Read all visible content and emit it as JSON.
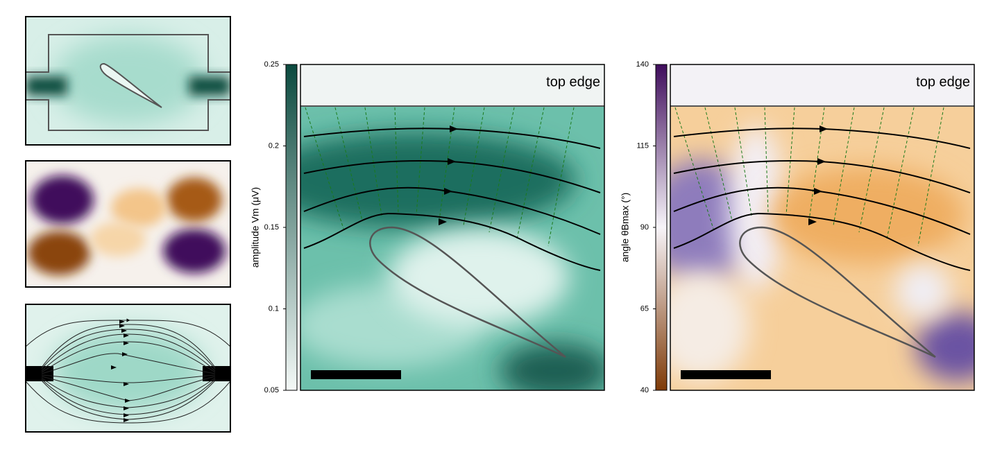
{
  "chart_data": [
    {
      "type": "heatmap",
      "ylabel": "amplitude Vm (μV)",
      "annotation": "top edge",
      "ylim": [
        0.05,
        0.25
      ],
      "yticks": [
        0.05,
        0.1,
        0.15,
        0.2,
        0.25
      ],
      "colors": [
        "#f4f9f7",
        "#0b4a3f"
      ]
    },
    {
      "type": "heatmap",
      "ylabel": "angle θBmax (°)",
      "annotation": "top edge",
      "ylim": [
        40,
        140
      ],
      "yticks": [
        40,
        65,
        90,
        115,
        140
      ],
      "colors": [
        "#7f3b08",
        "#f7f4f9",
        "#3f0d5c"
      ]
    }
  ]
}
